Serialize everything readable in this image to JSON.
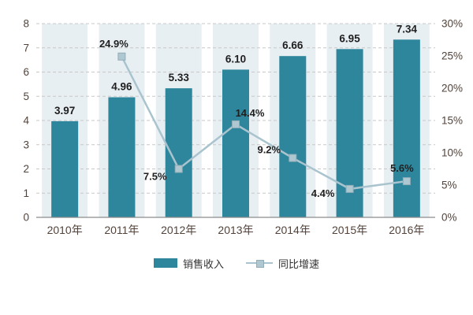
{
  "chart_data": {
    "type": "combo",
    "title": "",
    "categories": [
      "2010年",
      "2011年",
      "2012年",
      "2013年",
      "2014年",
      "2015年",
      "2016年"
    ],
    "series": [
      {
        "name": "销售收入",
        "type": "bar",
        "color": "#2E869C",
        "values": [
          3.97,
          4.96,
          5.33,
          6.1,
          6.66,
          6.95,
          7.34
        ],
        "labels": [
          "3.97",
          "4.96",
          "5.33",
          "6.10",
          "6.66",
          "6.95",
          "7.34"
        ]
      },
      {
        "name": "同比增速",
        "type": "line",
        "color": "#A9C4CE",
        "start_index": 1,
        "values": [
          24.9,
          7.5,
          14.4,
          9.2,
          4.4,
          5.6
        ],
        "labels": [
          "24.9%",
          "7.5%",
          "14.4%",
          "9.2%",
          "4.4%",
          "5.6%"
        ]
      }
    ],
    "left_axis": {
      "min": 0,
      "max": 8,
      "step": 1,
      "ticks": [
        "0",
        "1",
        "2",
        "3",
        "4",
        "5",
        "6",
        "7",
        "8"
      ]
    },
    "right_axis": {
      "min": 0,
      "max": 30,
      "step": 5,
      "ticks": [
        "0%",
        "5%",
        "10%",
        "15%",
        "20%",
        "25%",
        "30%"
      ]
    },
    "grid": "horizontal-dashed",
    "legend_position": "bottom",
    "colors": {
      "bar": "#2E869C",
      "band": "#E8EFF3",
      "line": "#A9C4CE",
      "marker_fill": "#AEC7D0",
      "marker_stroke": "#93ADB8",
      "grid": "#C8C8C8",
      "axis_line": "#8C8C8C",
      "value_label": "#1F1F1F",
      "axis_label": "#53433A"
    }
  }
}
